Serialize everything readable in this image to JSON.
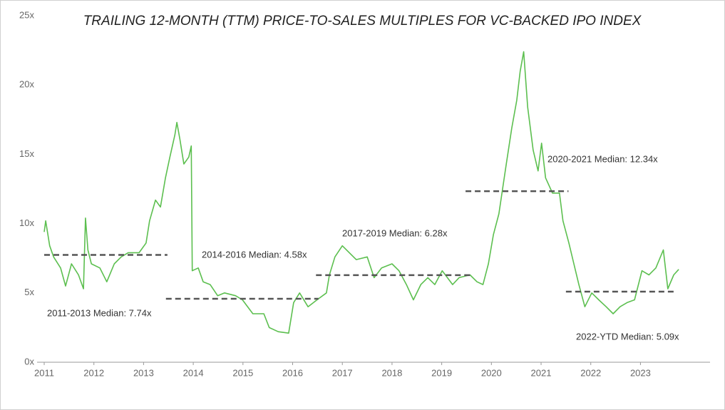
{
  "chart_data": {
    "type": "line",
    "title": "TRAILING 12-MONTH (TTM) PRICE-TO-SALES MULTIPLES FOR VC-BACKED IPO INDEX",
    "xlim": [
      2011,
      2024.4
    ],
    "xticks": [
      2011,
      2012,
      2013,
      2014,
      2015,
      2016,
      2017,
      2018,
      2019,
      2020,
      2021,
      2022,
      2023
    ],
    "ylim": [
      0,
      25
    ],
    "yticks": [
      {
        "value": 0,
        "label": "0x"
      },
      {
        "value": 5,
        "label": "5x"
      },
      {
        "value": 10,
        "label": "10x"
      },
      {
        "value": 15,
        "label": "15x"
      },
      {
        "value": 20,
        "label": "20x"
      },
      {
        "value": 25,
        "label": "25x"
      }
    ],
    "grid": false,
    "series": [
      {
        "color": "#5cbf4f",
        "x": [
          2011.0,
          2011.03,
          2011.11,
          2011.19,
          2011.33,
          2011.43,
          2011.55,
          2011.69,
          2011.79,
          2011.83,
          2011.88,
          2011.95,
          2012.12,
          2012.26,
          2012.41,
          2012.55,
          2012.69,
          2012.91,
          2013.05,
          2013.12,
          2013.24,
          2013.34,
          2013.44,
          2013.53,
          2013.63,
          2013.67,
          2013.73,
          2013.81,
          2013.91,
          2013.96,
          2013.98,
          2014.1,
          2014.2,
          2014.34,
          2014.49,
          2014.63,
          2014.85,
          2014.99,
          2015.2,
          2015.42,
          2015.53,
          2015.71,
          2015.92,
          2016.02,
          2016.14,
          2016.31,
          2016.49,
          2016.68,
          2016.74,
          2016.85,
          2017.0,
          2017.14,
          2017.28,
          2017.5,
          2017.64,
          2017.79,
          2018.0,
          2018.14,
          2018.29,
          2018.43,
          2018.58,
          2018.72,
          2018.86,
          2019.01,
          2019.22,
          2019.35,
          2019.57,
          2019.71,
          2019.83,
          2019.94,
          2020.04,
          2020.15,
          2020.3,
          2020.41,
          2020.51,
          2020.58,
          2020.65,
          2020.73,
          2020.84,
          2020.94,
          2021.01,
          2021.09,
          2021.23,
          2021.37,
          2021.44,
          2021.56,
          2021.66,
          2021.76,
          2021.88,
          2022.02,
          2022.16,
          2022.31,
          2022.45,
          2022.59,
          2022.73,
          2022.88,
          2023.03,
          2023.17,
          2023.31,
          2023.46,
          2023.55,
          2023.67,
          2023.77
        ],
        "values": [
          9.4,
          10.2,
          8.4,
          7.6,
          6.8,
          5.5,
          7.1,
          6.3,
          5.3,
          10.4,
          8.1,
          7.1,
          6.8,
          5.8,
          7.1,
          7.6,
          7.9,
          7.9,
          8.6,
          10.2,
          11.7,
          11.2,
          13.3,
          14.8,
          16.4,
          17.3,
          16.1,
          14.3,
          14.8,
          15.6,
          6.6,
          6.8,
          5.8,
          5.6,
          4.8,
          5.0,
          4.8,
          4.5,
          3.5,
          3.5,
          2.5,
          2.2,
          2.1,
          4.3,
          5.0,
          4.0,
          4.5,
          5.0,
          6.3,
          7.6,
          8.4,
          7.9,
          7.4,
          7.6,
          6.1,
          6.8,
          7.1,
          6.6,
          5.6,
          4.5,
          5.6,
          6.1,
          5.6,
          6.6,
          5.6,
          6.1,
          6.3,
          5.8,
          5.6,
          7.1,
          9.2,
          10.7,
          14.3,
          16.9,
          18.9,
          21.0,
          22.4,
          18.4,
          15.3,
          13.8,
          15.8,
          13.3,
          12.2,
          12.2,
          10.2,
          8.6,
          7.1,
          5.6,
          4.0,
          5.0,
          4.5,
          4.0,
          3.5,
          4.0,
          4.3,
          4.5,
          6.6,
          6.3,
          6.8,
          8.1,
          5.3,
          6.3,
          6.7
        ]
      }
    ],
    "medians": [
      {
        "label": "2011-2013 Median: 7.74x",
        "value": 7.74,
        "x": [
          2011,
          2013.48
        ]
      },
      {
        "label": "2014-2016 Median: 4.58x",
        "value": 4.58,
        "x": [
          2013.45,
          2016.52
        ]
      },
      {
        "label": "2017-2019 Median: 6.28x",
        "value": 6.28,
        "x": [
          2016.47,
          2019.58
        ]
      },
      {
        "label": "2020-2021 Median: 12.34x",
        "value": 12.34,
        "x": [
          2019.48,
          2021.55
        ]
      },
      {
        "label": "2022-YTD Median: 5.09x",
        "value": 5.09,
        "x": [
          2021.5,
          2023.72
        ]
      }
    ]
  }
}
